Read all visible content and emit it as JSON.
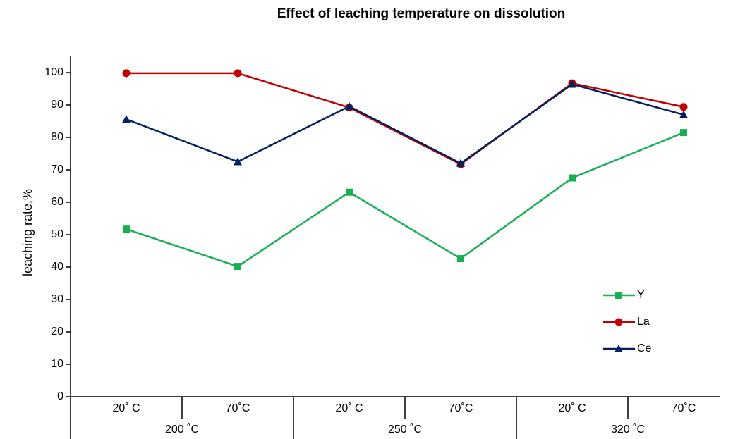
{
  "chart_data": {
    "type": "line",
    "title": "Effect of leaching temperature on dissolution",
    "y_label": "leaching rate,%",
    "categories": [
      "20˚ C",
      "70˚C",
      "20˚ C",
      "70˚C",
      "20˚ C",
      "70˚C"
    ],
    "category_groups": [
      "200 ˚C",
      "250 ˚C",
      "320 ˚C"
    ],
    "series": [
      {
        "name": "Y",
        "color": "#1aaf54",
        "marker": "square",
        "values": [
          51.7,
          40.2,
          63.1,
          42.6,
          67.5,
          81.5
        ]
      },
      {
        "name": "La",
        "color": "#c00000",
        "marker": "circle",
        "values": [
          99.8,
          99.8,
          89.2,
          71.7,
          96.7,
          89.4
        ]
      },
      {
        "name": "Ce",
        "color": "#002060",
        "marker": "triangle",
        "values": [
          85.6,
          72.5,
          89.6,
          72.0,
          96.4,
          87.0
        ]
      }
    ],
    "ylim": [
      0,
      105
    ],
    "yticks": [
      0,
      10,
      20,
      30,
      40,
      50,
      60,
      70,
      80,
      90,
      100
    ],
    "grid": false,
    "legend": "right"
  }
}
